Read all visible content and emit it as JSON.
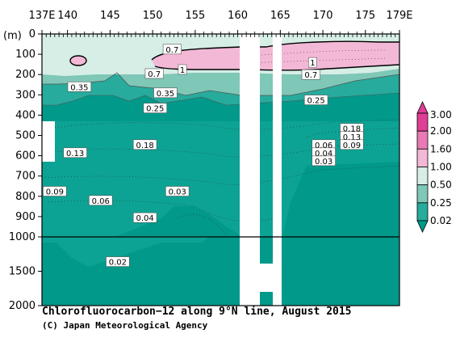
{
  "chart_data": {
    "type": "heatmap",
    "title": "Chlorofluorocarbon−12 along 9°N line, August 2015",
    "credit": "(C) Japan Meteorological Agency",
    "x_ticks": [
      "137E",
      "140",
      "145",
      "150",
      "155",
      "160",
      "165",
      "170",
      "175",
      "179E"
    ],
    "x_tick_values": [
      137,
      140,
      145,
      150,
      155,
      160,
      165,
      170,
      175,
      179
    ],
    "xlim": [
      137,
      179
    ],
    "y_unit_label": "(m)",
    "y_ticks": [
      "0",
      "100",
      "200",
      "300",
      "400",
      "500",
      "600",
      "700",
      "800",
      "900",
      "1000",
      "1500",
      "2000"
    ],
    "y_tick_values": [
      0,
      100,
      200,
      300,
      400,
      500,
      600,
      700,
      800,
      900,
      1000,
      1500,
      2000
    ],
    "ylim": [
      0,
      2000
    ],
    "y_axis_break": 1000,
    "colorbar": {
      "levels": [
        "3.00",
        "2.00",
        "1.60",
        "1.00",
        "0.50",
        "0.25",
        "0.02"
      ],
      "colors": [
        "#e03e96",
        "#e97ab5",
        "#f3b8d6",
        "#d6eee6",
        "#7fc7b7",
        "#26ab9c",
        "#00998a"
      ]
    },
    "contour_labels": [
      {
        "text": "0.7",
        "lon": 152.3,
        "depth": 75
      },
      {
        "text": "0.7",
        "lon": 150.2,
        "depth": 195
      },
      {
        "text": "0.7",
        "lon": 168.6,
        "depth": 200
      },
      {
        "text": "1",
        "lon": 153.5,
        "depth": 175
      },
      {
        "text": "1",
        "lon": 168.8,
        "depth": 140
      },
      {
        "text": "0.35",
        "lon": 141.4,
        "depth": 260
      },
      {
        "text": "0.35",
        "lon": 151.5,
        "depth": 290
      },
      {
        "text": "0.25",
        "lon": 150.3,
        "depth": 365
      },
      {
        "text": "0.25",
        "lon": 169.2,
        "depth": 325
      },
      {
        "text": "0.18",
        "lon": 173.4,
        "depth": 465
      },
      {
        "text": "0.13",
        "lon": 173.4,
        "depth": 505
      },
      {
        "text": "0.09",
        "lon": 173.4,
        "depth": 545
      },
      {
        "text": "0.06",
        "lon": 170.1,
        "depth": 545
      },
      {
        "text": "0.04",
        "lon": 170.1,
        "depth": 585
      },
      {
        "text": "0.03",
        "lon": 170.1,
        "depth": 625
      },
      {
        "text": "0.18",
        "lon": 149.1,
        "depth": 545
      },
      {
        "text": "0.13",
        "lon": 140.9,
        "depth": 585
      },
      {
        "text": "0.09",
        "lon": 138.5,
        "depth": 775
      },
      {
        "text": "0.06",
        "lon": 143.9,
        "depth": 820
      },
      {
        "text": "0.03",
        "lon": 152.9,
        "depth": 775
      },
      {
        "text": "0.04",
        "lon": 149.1,
        "depth": 905
      },
      {
        "text": "0.02",
        "lon": 145.9,
        "depth": 1360
      }
    ]
  }
}
